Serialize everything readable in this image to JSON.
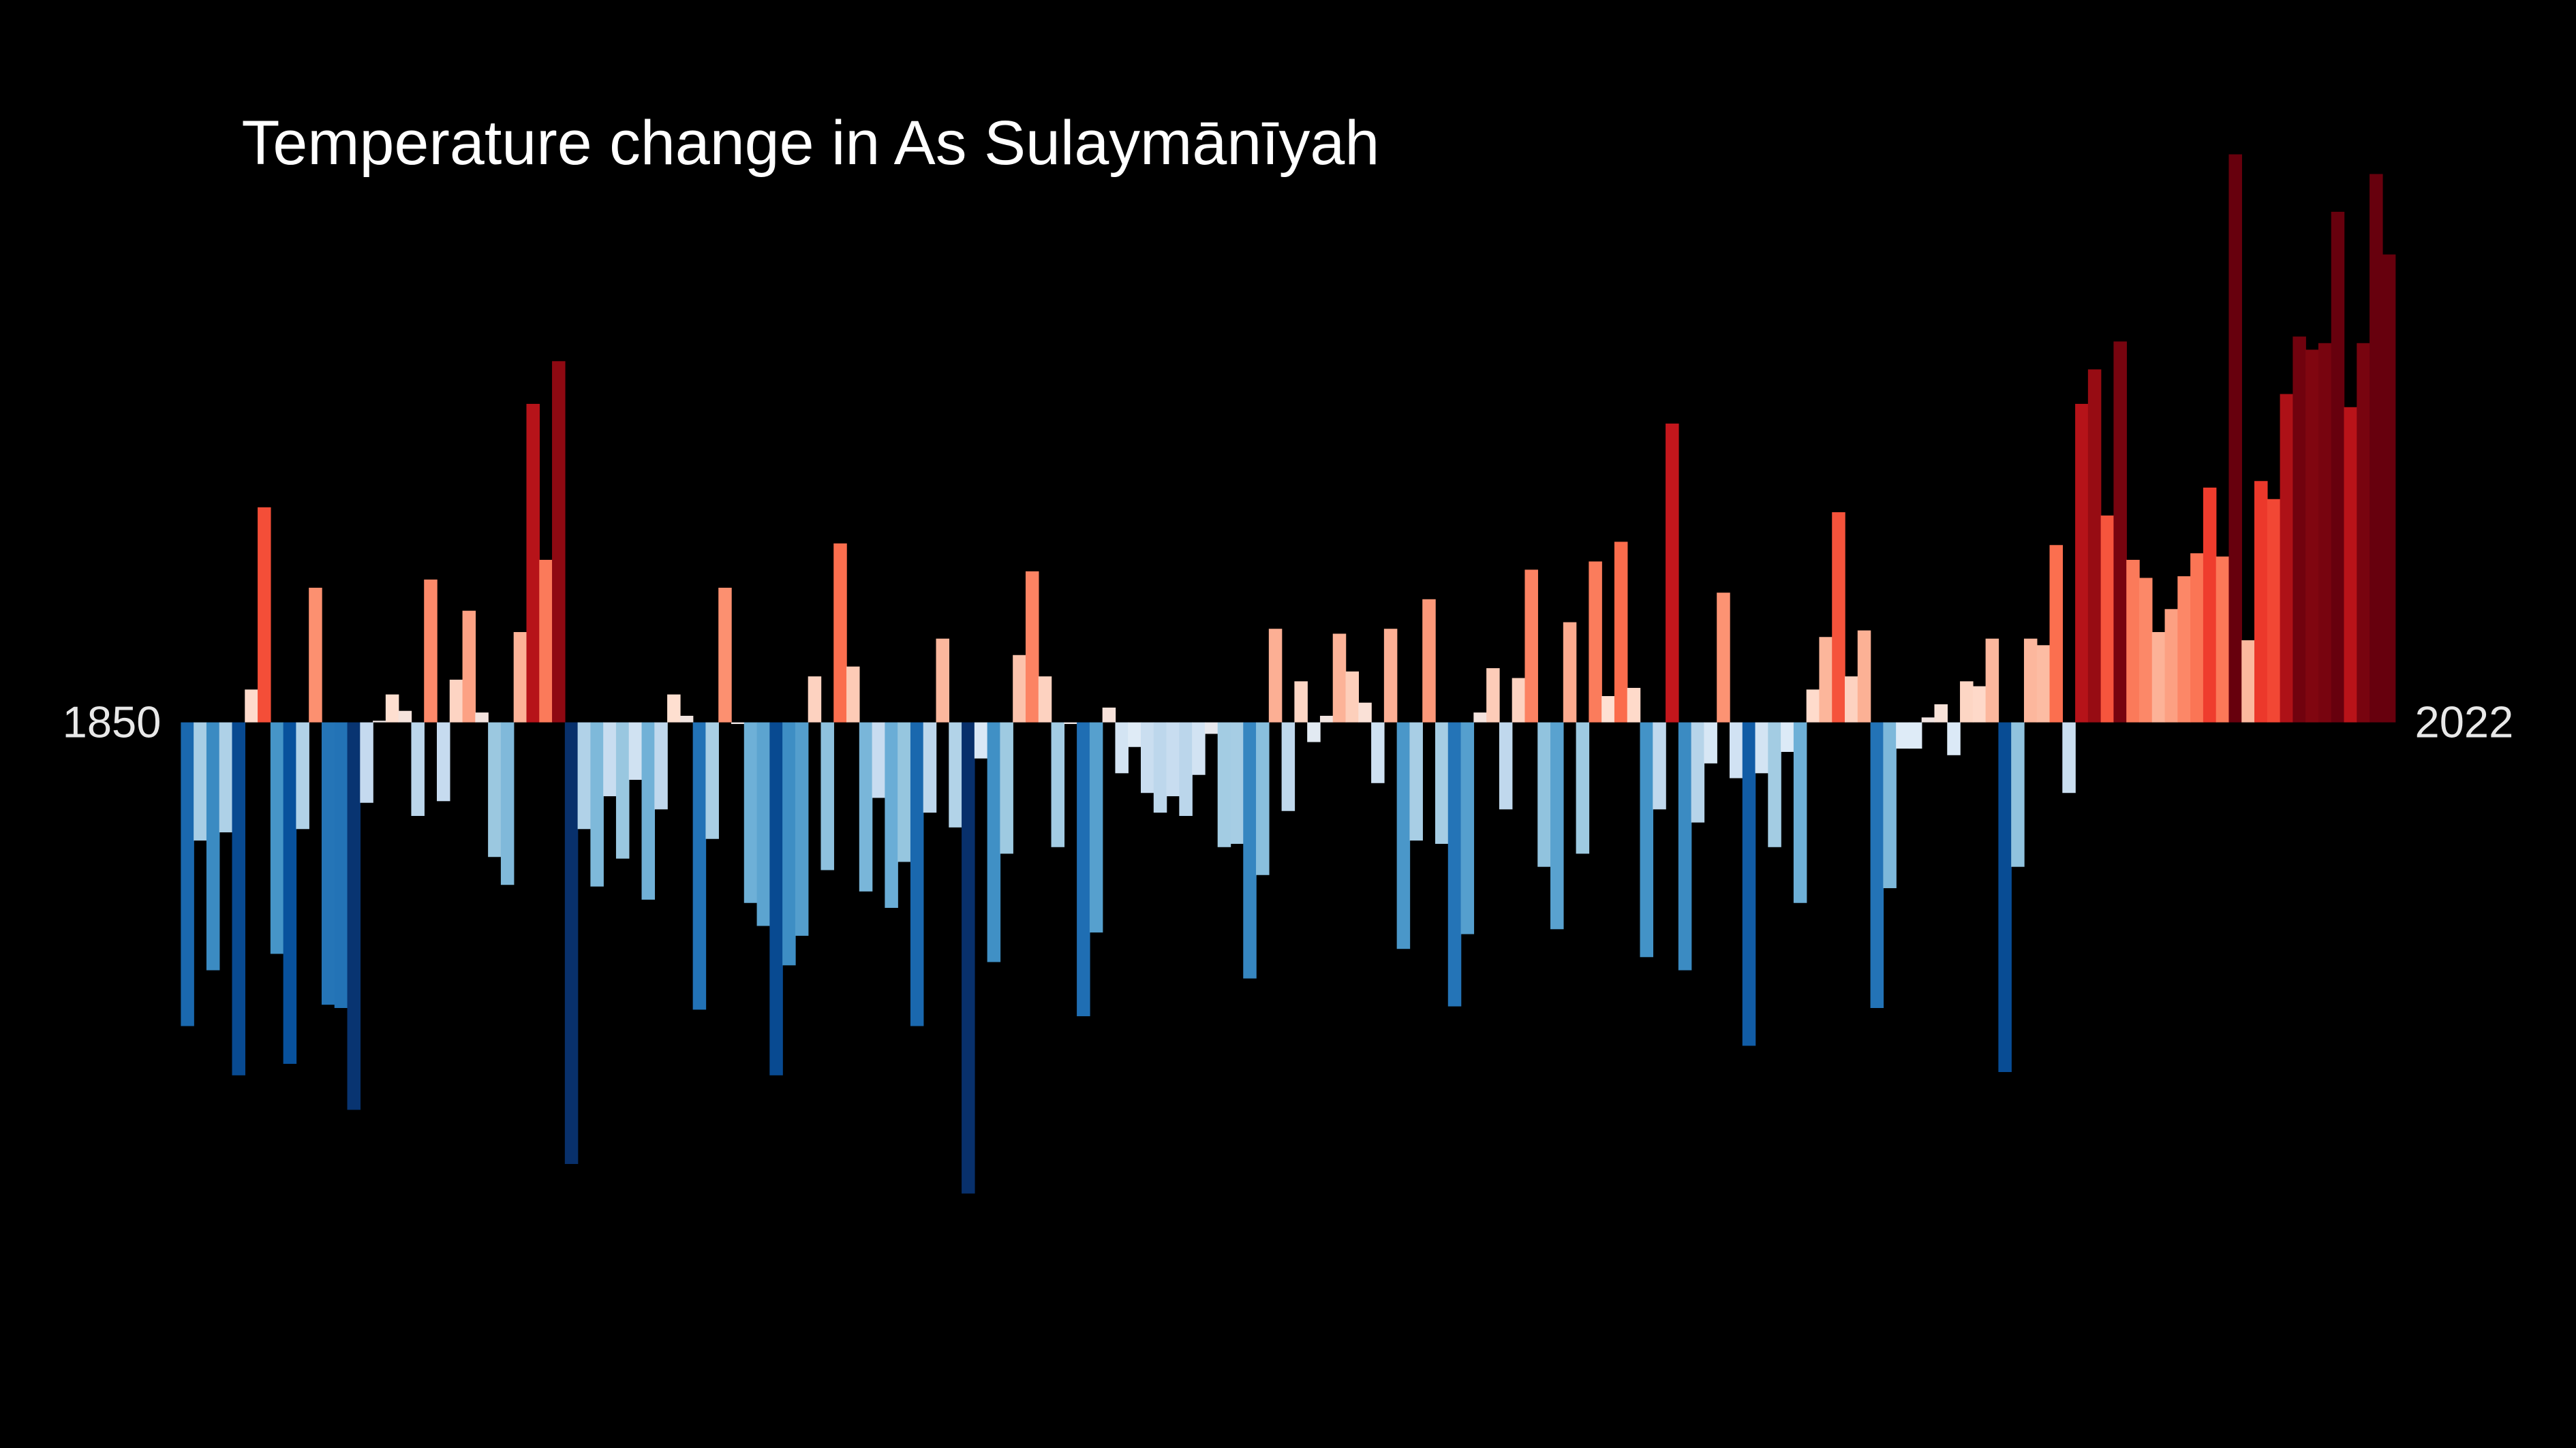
{
  "chart_data": {
    "type": "bar",
    "title": "Temperature change in As Sulaymānīyah",
    "categories": [
      "1850",
      null,
      null,
      null,
      null,
      null,
      null,
      null,
      null,
      null,
      null,
      null,
      null,
      null,
      null,
      null,
      null,
      null,
      null,
      null,
      null,
      null,
      null,
      null,
      null,
      null,
      null,
      null,
      null,
      null,
      null,
      null,
      null,
      null,
      null,
      null,
      null,
      null,
      null,
      null,
      null,
      null,
      null,
      null,
      null,
      null,
      null,
      null,
      null,
      null,
      null,
      null,
      null,
      null,
      null,
      null,
      null,
      null,
      null,
      null,
      null,
      null,
      null,
      null,
      null,
      null,
      null,
      null,
      null,
      null,
      null,
      null,
      null,
      null,
      null,
      null,
      null,
      null,
      null,
      null,
      null,
      null,
      null,
      null,
      null,
      null,
      null,
      null,
      null,
      null,
      null,
      null,
      null,
      null,
      null,
      null,
      null,
      null,
      null,
      null,
      null,
      null,
      null,
      null,
      null,
      null,
      null,
      null,
      null,
      null,
      null,
      null,
      null,
      null,
      null,
      null,
      null,
      null,
      null,
      null,
      null,
      null,
      null,
      null,
      null,
      null,
      null,
      null,
      null,
      null,
      null,
      null,
      null,
      null,
      null,
      null,
      null,
      null,
      null,
      null,
      null,
      null,
      null,
      null,
      null,
      null,
      null,
      null,
      null,
      null,
      null,
      null,
      null,
      null,
      null,
      null,
      null,
      null,
      null,
      null,
      null,
      null,
      null,
      null,
      null,
      null,
      null,
      null,
      null,
      null,
      null,
      null,
      "2022"
    ],
    "values": [
      -1.85,
      -0.72,
      -1.51,
      -0.67,
      -2.15,
      0.2,
      1.31,
      -1.41,
      -2.08,
      -0.65,
      0.82,
      -1.72,
      -1.74,
      -2.36,
      -0.49,
      0.01,
      0.17,
      0.07,
      -0.57,
      0.87,
      -0.48,
      0.26,
      0.68,
      0.06,
      -0.82,
      -0.99,
      0.55,
      1.94,
      0.99,
      2.2,
      -2.69,
      -0.65,
      -1.0,
      -0.45,
      -0.83,
      -0.35,
      -1.08,
      -0.53,
      0.17,
      0.04,
      -1.75,
      -0.71,
      0.82,
      -0.01,
      -1.1,
      -1.24,
      -2.15,
      -1.48,
      -1.3,
      0.28,
      -0.9,
      1.09,
      0.34,
      -1.03,
      -0.46,
      -1.13,
      -0.85,
      -1.85,
      -0.55,
      0.51,
      -0.64,
      -2.87,
      -0.22,
      -1.46,
      -0.8,
      0.41,
      0.92,
      0.28,
      -0.76,
      -0.01,
      -1.79,
      -1.28,
      0.09,
      -0.31,
      -0.15,
      -0.43,
      -0.55,
      -0.45,
      -0.57,
      -0.32,
      -0.07,
      -0.76,
      -0.74,
      -1.56,
      -0.93,
      0.57,
      -0.54,
      0.25,
      -0.12,
      0.04,
      0.54,
      0.31,
      0.12,
      -0.37,
      0.57,
      -1.38,
      -0.72,
      0.75,
      -0.74,
      -1.73,
      -1.29,
      0.06,
      0.33,
      -0.53,
      0.27,
      0.93,
      -0.88,
      -1.26,
      0.61,
      -0.8,
      0.98,
      0.16,
      1.1,
      0.21,
      -1.43,
      -0.53,
      1.82,
      -1.51,
      -0.61,
      -0.25,
      0.79,
      -0.34,
      -1.97,
      -0.31,
      -0.76,
      -0.18,
      -1.1,
      0.2,
      0.52,
      1.28,
      0.28,
      0.56,
      -1.74,
      -1.01,
      -0.16,
      -0.16,
      0.03,
      0.11,
      -0.2,
      0.25,
      0.22,
      0.51,
      -2.13,
      -0.88,
      0.51,
      0.47,
      1.08,
      -0.43,
      1.94,
      2.15,
      1.26,
      2.32,
      0.99,
      0.88,
      0.55,
      0.69,
      0.89,
      1.03,
      1.43,
      1.01,
      3.46,
      0.5,
      1.47,
      1.36,
      2.0,
      2.35,
      2.27,
      2.31,
      3.11,
      1.92,
      2.31,
      3.34,
      2.85
    ],
    "ylim": [
      -4.42,
      4.4
    ],
    "colormap": [
      "#08306b",
      "#08519c",
      "#2171b5",
      "#4292c6",
      "#6baed6",
      "#9ecae1",
      "#c6dbef",
      "#deebf7",
      "#fee0d2",
      "#fcbba1",
      "#fc9272",
      "#fb6a4a",
      "#ef3b2c",
      "#cb181d",
      "#a50f15",
      "#67000d"
    ],
    "color_lim": [
      -2.4,
      2.4
    ]
  }
}
